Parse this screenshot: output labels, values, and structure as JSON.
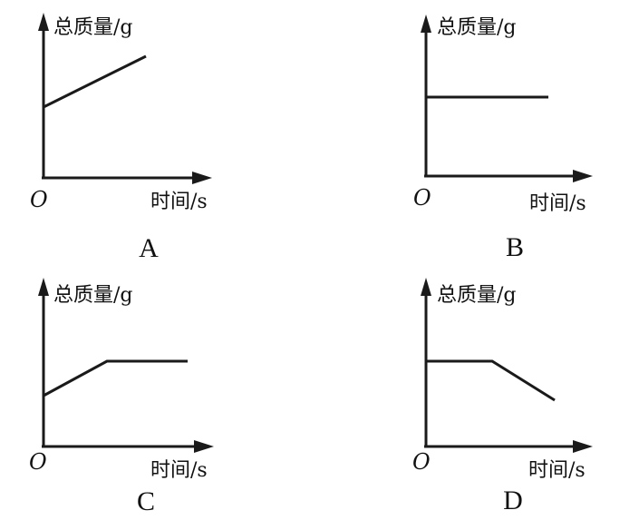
{
  "panels": [
    {
      "letter": "A",
      "ylabel": "总质量/g",
      "xlabel": "时间/s",
      "origin": "O"
    },
    {
      "letter": "B",
      "ylabel": "总质量/g",
      "xlabel": "时间/s",
      "origin": "O"
    },
    {
      "letter": "C",
      "ylabel": "总质量/g",
      "xlabel": "时间/s",
      "origin": "O"
    },
    {
      "letter": "D",
      "ylabel": "总质量/g",
      "xlabel": "时间/s",
      "origin": "O"
    }
  ],
  "colors": {
    "line": "#1a1a1a",
    "text": "#111111",
    "background": "#ffffff"
  }
}
